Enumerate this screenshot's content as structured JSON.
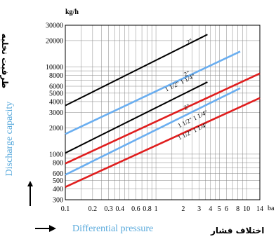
{
  "chart_data": {
    "type": "line",
    "title": "",
    "xlabel": "Differential pressure",
    "xlabel_fa": "اختلاف فشار",
    "ylabel": "Discharge capacity",
    "ylabel_fa": "ظرفیت تخلیه",
    "y_unit": "kg/h",
    "x_unit": "ba",
    "xscale": "log",
    "yscale": "log",
    "xlim": [
      0.1,
      14
    ],
    "ylim": [
      300,
      30000
    ],
    "grid": true,
    "x_ticks": [
      0.1,
      0.2,
      0.3,
      0.4,
      0.6,
      0.8,
      1,
      2,
      3,
      4,
      5,
      6,
      8,
      10,
      14
    ],
    "x_tick_labels": [
      "0.1",
      "0.2",
      "0.3",
      "0.4",
      "0.6",
      "0.8",
      "1",
      "2",
      "3",
      "4",
      "5",
      "6",
      "8",
      "10",
      "14"
    ],
    "y_ticks": [
      300,
      400,
      500,
      600,
      800,
      1000,
      2000,
      3000,
      4000,
      5000,
      6000,
      8000,
      10000,
      20000,
      30000
    ],
    "y_tick_labels": [
      "300",
      "400",
      "500",
      "600",
      "800",
      "1000",
      "2000",
      "3000",
      "4000",
      "5000",
      "6000",
      "8000",
      "10000",
      "20000",
      "30000"
    ],
    "series": [
      {
        "name": "2\"",
        "color": "#000000",
        "x": [
          0.1,
          3.7
        ],
        "y": [
          3600,
          23500
        ]
      },
      {
        "name": "2\"",
        "color": "#6aaef0",
        "x": [
          0.1,
          8.5
        ],
        "y": [
          1700,
          15000
        ]
      },
      {
        "name": "1 1/2\" 1 1/4\"",
        "color": "#000000",
        "x": [
          0.1,
          3.7
        ],
        "y": [
          1030,
          6700
        ]
      },
      {
        "name": "2\"",
        "color": "#e01e1e",
        "x": [
          0.1,
          14
        ],
        "y": [
          780,
          8400
        ]
      },
      {
        "name": "1 1/2\" 1 1/4\"",
        "color": "#6aaef0",
        "x": [
          0.1,
          8.5
        ],
        "y": [
          580,
          5700
        ]
      },
      {
        "name": "1 1/2\" 1 1/4\"",
        "color": "#e01e1e",
        "x": [
          0.1,
          14
        ],
        "y": [
          420,
          4400
        ]
      }
    ],
    "curve_labels": [
      {
        "text": "2\"",
        "x": 2.25,
        "y": 18000
      },
      {
        "text": "2\"",
        "x": 2.1,
        "y": 7700
      },
      {
        "text": "1 1/2\" 1 1/4\"",
        "x": 1.3,
        "y": 5200
      },
      {
        "text": "2\"",
        "x": 2.1,
        "y": 3200
      },
      {
        "text": "1 1/2\" 1 1/4\"",
        "x": 1.8,
        "y": 2000
      },
      {
        "text": "1 1/2\" 1 1/4\"",
        "x": 1.8,
        "y": 1450
      }
    ]
  }
}
